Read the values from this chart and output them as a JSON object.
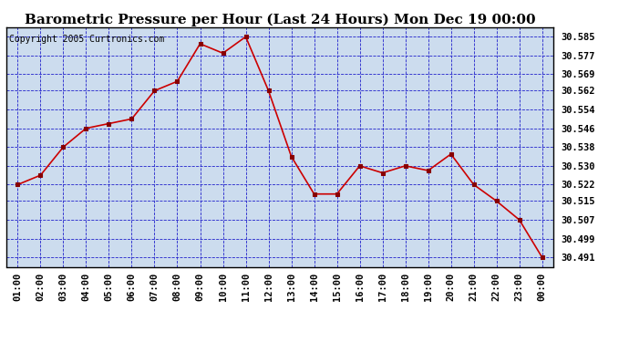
{
  "title": "Barometric Pressure per Hour (Last 24 Hours) Mon Dec 19 00:00",
  "copyright": "Copyright 2005 Curtronics.com",
  "x_labels": [
    "01:00",
    "02:00",
    "03:00",
    "04:00",
    "05:00",
    "06:00",
    "07:00",
    "08:00",
    "09:00",
    "10:00",
    "11:00",
    "12:00",
    "13:00",
    "14:00",
    "15:00",
    "16:00",
    "17:00",
    "18:00",
    "19:00",
    "20:00",
    "21:00",
    "22:00",
    "23:00",
    "00:00"
  ],
  "y_values": [
    30.522,
    30.526,
    30.538,
    30.546,
    30.548,
    30.55,
    30.562,
    30.566,
    30.582,
    30.578,
    30.585,
    30.562,
    30.534,
    30.518,
    30.518,
    30.53,
    30.527,
    30.53,
    30.528,
    30.535,
    30.522,
    30.515,
    30.507,
    30.491
  ],
  "y_ticks": [
    30.491,
    30.499,
    30.507,
    30.515,
    30.522,
    30.53,
    30.538,
    30.546,
    30.554,
    30.562,
    30.569,
    30.577,
    30.585
  ],
  "y_min": 30.487,
  "y_max": 30.589,
  "line_color": "#cc0000",
  "marker_color": "#880000",
  "bg_color": "#ccdcee",
  "fig_bg_color": "#ffffff",
  "grid_color": "#2222cc",
  "title_fontsize": 11,
  "tick_fontsize": 7.5,
  "copyright_fontsize": 7
}
